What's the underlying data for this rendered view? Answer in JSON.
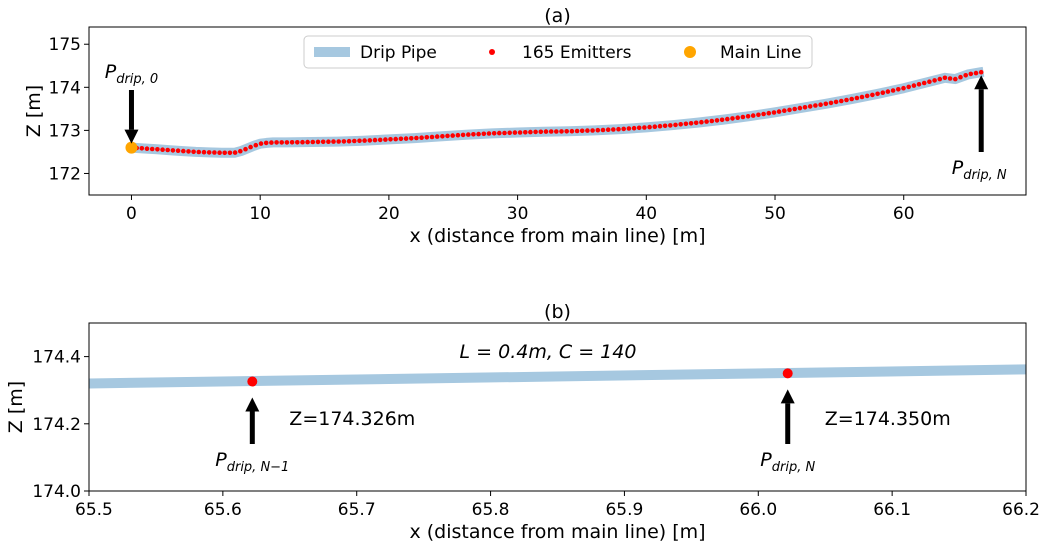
{
  "chart_data": [
    {
      "type": "line",
      "title": "(a)",
      "xlabel": "x (distance from main line) [m]",
      "ylabel": "Z [m]",
      "xlim": [
        -3.3,
        69.5
      ],
      "ylim": [
        171.5,
        175.4
      ],
      "xticks": [
        0,
        10,
        20,
        30,
        40,
        50,
        60
      ],
      "yticks": [
        172,
        173,
        174,
        175
      ],
      "grid": false,
      "legend_position": "top-center",
      "series": [
        {
          "name": "Drip Pipe",
          "kind": "line",
          "color": "#a6c8e0",
          "x": [
            0,
            1,
            2,
            3,
            4,
            5,
            6,
            7,
            8,
            8.5,
            9,
            9.5,
            10,
            10.5,
            11,
            12,
            14,
            16,
            18,
            20,
            22,
            24,
            26,
            28,
            30,
            32,
            34,
            36,
            38,
            40,
            42,
            44,
            46,
            48,
            50,
            52,
            54,
            56,
            58,
            60,
            62,
            63.2,
            64,
            65,
            66,
            66.2
          ],
          "y": [
            172.6,
            172.58,
            172.56,
            172.54,
            172.52,
            172.5,
            172.49,
            172.48,
            172.48,
            172.52,
            172.58,
            172.64,
            172.69,
            172.71,
            172.72,
            172.72,
            172.73,
            172.74,
            172.76,
            172.79,
            172.82,
            172.86,
            172.9,
            172.93,
            172.95,
            172.97,
            172.98,
            173.0,
            173.03,
            173.07,
            173.12,
            173.18,
            173.25,
            173.33,
            173.42,
            173.52,
            173.62,
            173.73,
            173.85,
            173.98,
            174.13,
            174.22,
            174.19,
            174.3,
            174.35,
            174.36
          ]
        },
        {
          "name": "165 Emitters",
          "kind": "scatter",
          "color": "#ff0000",
          "count": 165,
          "x_start": 0,
          "x_end": 66.02
        },
        {
          "name": "Main Line",
          "kind": "scatter",
          "color": "#ffa500",
          "x": [
            0
          ],
          "y": [
            172.6
          ]
        }
      ],
      "annotations": [
        {
          "base": "P",
          "sub": "drip, 0",
          "x": 0,
          "y": 172.6,
          "direction": "down"
        },
        {
          "base": "P",
          "sub": "drip, N",
          "x": 66.02,
          "y": 174.35,
          "direction": "up"
        }
      ]
    },
    {
      "type": "line",
      "title": "(b)",
      "xlabel": "x (distance from main line) [m]",
      "ylabel": "Z [m]",
      "xlim": [
        65.5,
        66.2
      ],
      "ylim": [
        174.0,
        174.5
      ],
      "xticks": [
        65.5,
        65.6,
        65.7,
        65.8,
        65.9,
        66.0,
        66.1,
        66.2
      ],
      "xtick_labels": [
        "65.5",
        "65.6",
        "65.7",
        "65.8",
        "65.9",
        "66.0",
        "66.1",
        "66.2"
      ],
      "yticks": [
        174.0,
        174.2,
        174.4
      ],
      "ytick_labels": [
        "174.0",
        "174.2",
        "174.4"
      ],
      "grid": false,
      "subtitle_text": "L = 0.4m, C = 140",
      "series": [
        {
          "name": "Drip Pipe",
          "kind": "line",
          "color": "#a6c8e0",
          "x": [
            65.5,
            66.2
          ],
          "y": [
            174.32,
            174.362
          ]
        },
        {
          "name": "Emitters",
          "kind": "scatter",
          "color": "#ff0000",
          "x": [
            65.622,
            66.022
          ],
          "y": [
            174.326,
            174.35
          ]
        }
      ],
      "annotations": [
        {
          "base": "P",
          "sub": "drip, N−1",
          "x": 65.622,
          "y": 174.326,
          "label": "Z=174.326m"
        },
        {
          "base": "P",
          "sub": "drip, N",
          "x": 66.022,
          "y": 174.35,
          "label": "Z=174.350m"
        }
      ]
    }
  ]
}
